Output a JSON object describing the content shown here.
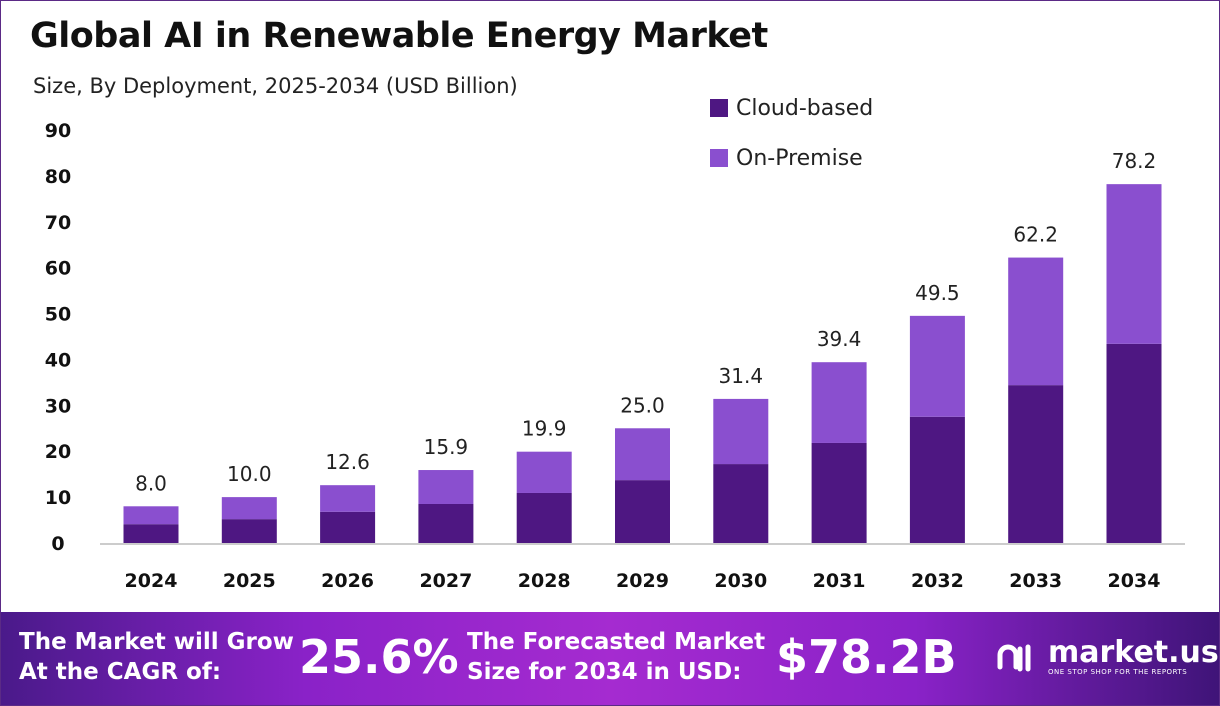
{
  "title": "Global AI in Renewable Energy Market",
  "subtitle": "Size, By Deployment, 2025-2034 (USD Billion)",
  "chart_data": {
    "type": "bar",
    "stacked": true,
    "categories": [
      "2024",
      "2025",
      "2026",
      "2027",
      "2028",
      "2029",
      "2030",
      "2031",
      "2032",
      "2033",
      "2034"
    ],
    "series": [
      {
        "name": "Cloud-based",
        "color": "#4e1782",
        "values": [
          4.1,
          5.2,
          6.8,
          8.5,
          10.9,
          13.7,
          17.2,
          21.8,
          27.5,
          34.4,
          43.4
        ]
      },
      {
        "name": "On-Premise",
        "color": "#8a4fcf",
        "values": [
          3.9,
          4.8,
          5.8,
          7.4,
          9.0,
          11.3,
          14.2,
          17.6,
          22.0,
          27.8,
          34.8
        ]
      }
    ],
    "totals": [
      "8.0",
      "10.0",
      "12.6",
      "15.9",
      "19.9",
      "25.0",
      "31.4",
      "39.4",
      "49.5",
      "62.2",
      "78.2"
    ],
    "yticks": [
      "0",
      "10",
      "20",
      "30",
      "40",
      "50",
      "60",
      "70",
      "80",
      "90"
    ],
    "ylim": [
      0,
      90
    ],
    "grid": false,
    "legend": "top-right"
  },
  "footer": {
    "cagr_label_1": "The Market will Grow",
    "cagr_label_2": "At the CAGR of:",
    "cagr_value": "25.6%",
    "forecast_label_1": "The Forecasted Market",
    "forecast_label_2": "Size for 2034 in USD:",
    "forecast_value": "$78.2B",
    "logo_text": "market.us",
    "logo_tagline": "ONE STOP SHOP FOR THE REPORTS"
  }
}
